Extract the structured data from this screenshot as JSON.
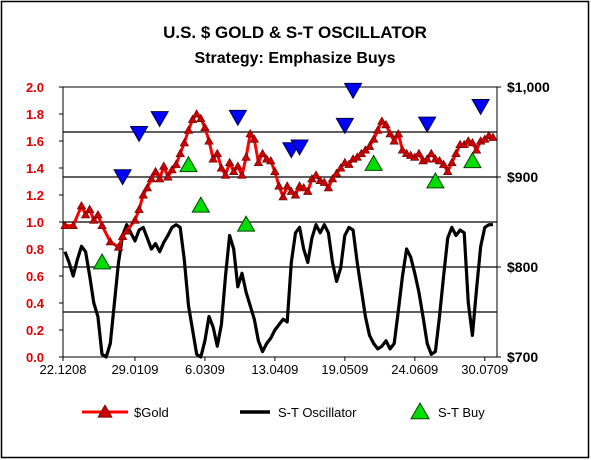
{
  "chart_data": {
    "type": "line",
    "title": "U.S. $ GOLD & S-T OSCILLATOR",
    "subtitle": "Strategy: Emphasize Buys",
    "x_tick_labels": [
      "22.1208",
      "29.0109",
      "6.0309",
      "13.0409",
      "19.0509",
      "24.0609",
      "30.0709"
    ],
    "y_left": {
      "ylim": [
        0.0,
        2.0
      ],
      "ticks": [
        "0.0",
        "0.2",
        "0.4",
        "0.6",
        "0.8",
        "1.0",
        "1.2",
        "1.4",
        "1.6",
        "1.8",
        "2.0"
      ]
    },
    "y_right": {
      "ylim": [
        700,
        1000
      ],
      "ticks": [
        "$700",
        "$800",
        "$900",
        "$1,000"
      ]
    },
    "grid": "horizontal at $750 intervals",
    "legend_position": "bottom",
    "colors": {
      "gold": "#ff0000",
      "gold_marker": "#cc0000",
      "oscillator": "#000000",
      "buy": "#00dd00",
      "sell": "#0000ff"
    },
    "series": [
      {
        "name": "$Gold",
        "axis": "right",
        "values": [
          [
            0,
            846
          ],
          [
            2,
            846
          ],
          [
            4,
            868
          ],
          [
            5,
            858
          ],
          [
            6,
            864
          ],
          [
            7,
            852
          ],
          [
            8,
            858
          ],
          [
            9,
            846
          ],
          [
            11,
            828
          ],
          [
            13,
            822
          ],
          [
            14,
            834
          ],
          [
            15,
            840
          ],
          [
            17,
            852
          ],
          [
            18,
            864
          ],
          [
            19,
            880
          ],
          [
            20,
            888
          ],
          [
            21,
            898
          ],
          [
            22,
            906
          ],
          [
            23,
            898
          ],
          [
            24,
            912
          ],
          [
            25,
            900
          ],
          [
            26,
            908
          ],
          [
            27,
            914
          ],
          [
            28,
            926
          ],
          [
            29,
            938
          ],
          [
            30,
            952
          ],
          [
            31,
            964
          ],
          [
            32,
            970
          ],
          [
            33,
            965
          ],
          [
            34,
            955
          ],
          [
            35,
            940
          ],
          [
            36,
            920
          ],
          [
            37,
            926
          ],
          [
            38,
            910
          ],
          [
            39,
            902
          ],
          [
            40,
            916
          ],
          [
            41,
            906
          ],
          [
            42,
            912
          ],
          [
            43,
            902
          ],
          [
            44,
            922
          ],
          [
            45,
            948
          ],
          [
            46,
            942
          ],
          [
            47,
            916
          ],
          [
            48,
            926
          ],
          [
            49,
            920
          ],
          [
            50,
            918
          ],
          [
            51,
            906
          ],
          [
            52,
            890
          ],
          [
            53,
            878
          ],
          [
            54,
            890
          ],
          [
            55,
            884
          ],
          [
            56,
            880
          ],
          [
            57,
            890
          ],
          [
            58,
            888
          ],
          [
            59,
            884
          ],
          [
            60,
            898
          ],
          [
            61,
            902
          ],
          [
            62,
            896
          ],
          [
            63,
            894
          ],
          [
            64,
            888
          ],
          [
            65,
            898
          ],
          [
            66,
            904
          ],
          [
            67,
            910
          ],
          [
            68,
            916
          ],
          [
            69,
            914
          ],
          [
            70,
            920
          ],
          [
            71,
            922
          ],
          [
            72,
            926
          ],
          [
            73,
            930
          ],
          [
            74,
            934
          ],
          [
            75,
            942
          ],
          [
            76,
            952
          ],
          [
            77,
            962
          ],
          [
            78,
            958
          ],
          [
            79,
            948
          ],
          [
            80,
            940
          ],
          [
            81,
            948
          ],
          [
            82,
            930
          ],
          [
            83,
            926
          ],
          [
            84,
            924
          ],
          [
            85,
            922
          ],
          [
            86,
            926
          ],
          [
            87,
            918
          ],
          [
            88,
            920
          ],
          [
            89,
            926
          ],
          [
            90,
            920
          ],
          [
            91,
            918
          ],
          [
            92,
            914
          ],
          [
            93,
            906
          ],
          [
            94,
            916
          ],
          [
            95,
            926
          ],
          [
            96,
            936
          ],
          [
            97,
            936
          ],
          [
            98,
            940
          ],
          [
            99,
            938
          ],
          [
            100,
            930
          ],
          [
            101,
            940
          ],
          [
            102,
            942
          ],
          [
            103,
            946
          ],
          [
            104,
            944
          ]
        ]
      },
      {
        "name": "S-T Oscillator",
        "axis": "left",
        "values": [
          [
            0,
            0.78
          ],
          [
            1,
            0.7
          ],
          [
            2,
            0.6
          ],
          [
            3,
            0.72
          ],
          [
            4,
            0.82
          ],
          [
            5,
            0.78
          ],
          [
            6,
            0.6
          ],
          [
            7,
            0.4
          ],
          [
            8,
            0.3
          ],
          [
            9,
            0.02
          ],
          [
            10,
            0.0
          ],
          [
            11,
            0.1
          ],
          [
            12,
            0.4
          ],
          [
            13,
            0.7
          ],
          [
            14,
            0.9
          ],
          [
            15,
            0.98
          ],
          [
            16,
            0.92
          ],
          [
            17,
            0.86
          ],
          [
            18,
            0.94
          ],
          [
            19,
            0.96
          ],
          [
            20,
            0.88
          ],
          [
            21,
            0.8
          ],
          [
            22,
            0.84
          ],
          [
            23,
            0.78
          ],
          [
            24,
            0.85
          ],
          [
            25,
            0.9
          ],
          [
            26,
            0.96
          ],
          [
            27,
            0.98
          ],
          [
            28,
            0.96
          ],
          [
            29,
            0.72
          ],
          [
            30,
            0.38
          ],
          [
            31,
            0.2
          ],
          [
            32,
            0.02
          ],
          [
            33,
            0.0
          ],
          [
            34,
            0.12
          ],
          [
            35,
            0.3
          ],
          [
            36,
            0.22
          ],
          [
            37,
            0.08
          ],
          [
            38,
            0.24
          ],
          [
            39,
            0.6
          ],
          [
            40,
            0.9
          ],
          [
            41,
            0.8
          ],
          [
            42,
            0.52
          ],
          [
            43,
            0.62
          ],
          [
            44,
            0.48
          ],
          [
            45,
            0.38
          ],
          [
            46,
            0.28
          ],
          [
            47,
            0.12
          ],
          [
            48,
            0.04
          ],
          [
            49,
            0.1
          ],
          [
            50,
            0.14
          ],
          [
            51,
            0.2
          ],
          [
            52,
            0.24
          ],
          [
            53,
            0.28
          ],
          [
            54,
            0.26
          ],
          [
            55,
            0.7
          ],
          [
            56,
            0.92
          ],
          [
            57,
            0.96
          ],
          [
            58,
            0.8
          ],
          [
            59,
            0.7
          ],
          [
            60,
            0.88
          ],
          [
            61,
            0.98
          ],
          [
            62,
            0.92
          ],
          [
            63,
            0.98
          ],
          [
            64,
            0.92
          ],
          [
            65,
            0.7
          ],
          [
            66,
            0.56
          ],
          [
            67,
            0.66
          ],
          [
            68,
            0.9
          ],
          [
            69,
            0.96
          ],
          [
            70,
            0.94
          ],
          [
            71,
            0.7
          ],
          [
            72,
            0.5
          ],
          [
            73,
            0.3
          ],
          [
            74,
            0.16
          ],
          [
            75,
            0.1
          ],
          [
            76,
            0.06
          ],
          [
            77,
            0.08
          ],
          [
            78,
            0.12
          ],
          [
            79,
            0.06
          ],
          [
            80,
            0.1
          ],
          [
            81,
            0.34
          ],
          [
            82,
            0.6
          ],
          [
            83,
            0.8
          ],
          [
            84,
            0.74
          ],
          [
            85,
            0.62
          ],
          [
            86,
            0.48
          ],
          [
            87,
            0.3
          ],
          [
            88,
            0.1
          ],
          [
            89,
            0.02
          ],
          [
            90,
            0.04
          ],
          [
            91,
            0.3
          ],
          [
            92,
            0.6
          ],
          [
            93,
            0.88
          ],
          [
            94,
            0.96
          ],
          [
            95,
            0.9
          ],
          [
            96,
            0.94
          ],
          [
            97,
            0.92
          ],
          [
            98,
            0.4
          ],
          [
            99,
            0.16
          ],
          [
            100,
            0.5
          ],
          [
            101,
            0.82
          ],
          [
            102,
            0.96
          ],
          [
            103,
            0.98
          ],
          [
            104,
            0.98
          ]
        ]
      }
    ],
    "buy_signals": [
      [
        9,
        0.7
      ],
      [
        30,
        1.42
      ],
      [
        33,
        1.12
      ],
      [
        44,
        0.98
      ],
      [
        75,
        1.43
      ],
      [
        90,
        1.3
      ],
      [
        99,
        1.45
      ]
    ],
    "sell_signals": [
      [
        14,
        1.34
      ],
      [
        18,
        1.66
      ],
      [
        23,
        1.77
      ],
      [
        42,
        1.78
      ],
      [
        55,
        1.54
      ],
      [
        57,
        1.56
      ],
      [
        68,
        1.72
      ],
      [
        70,
        1.98
      ],
      [
        88,
        1.73
      ],
      [
        101,
        1.86
      ]
    ],
    "legend": [
      {
        "label": "$Gold",
        "kind": "gold"
      },
      {
        "label": "S-T Oscillator",
        "kind": "line"
      },
      {
        "label": "S-T Buy",
        "kind": "buy"
      }
    ]
  }
}
